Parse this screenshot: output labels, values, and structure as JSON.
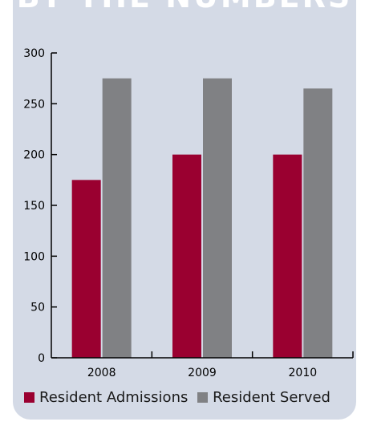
{
  "heading": "BY THE NUMBERS",
  "colors": {
    "panel": "#d4dae6",
    "resident_admissions": "#9a0030",
    "resident_served": "#808184",
    "axis": "#000000"
  },
  "chart_data": {
    "type": "bar",
    "categories": [
      "2008",
      "2009",
      "2010"
    ],
    "series": [
      {
        "name": "Resident Admissions",
        "values": [
          175,
          200,
          200
        ]
      },
      {
        "name": "Resident Served",
        "values": [
          275,
          275,
          265
        ]
      }
    ],
    "ylim": [
      0,
      300
    ],
    "yticks": [
      "0",
      "50",
      "100",
      "150",
      "200",
      "250",
      "300"
    ],
    "legend_position": "bottom-left",
    "grid": false
  }
}
